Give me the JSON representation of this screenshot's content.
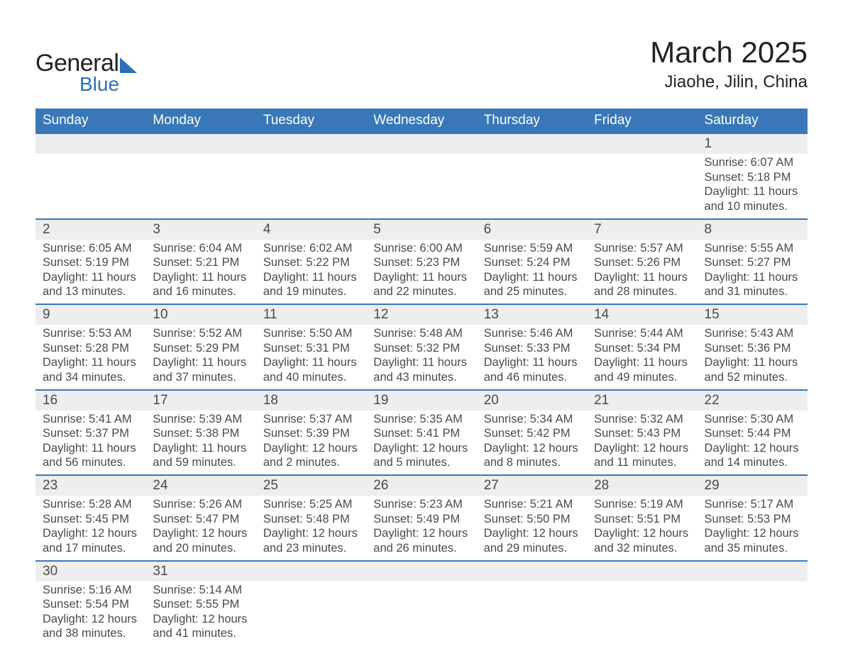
{
  "logo": {
    "text1": "General",
    "text2": "Blue",
    "triangle_color": "#2f6fb3"
  },
  "title": "March 2025",
  "location": "Jiaohe, Jilin, China",
  "colors": {
    "header_bg": "#3a77b8",
    "header_text": "#ffffff",
    "daynum_bg": "#eeeeee",
    "row_border": "#3a77b8",
    "body_text": "#4a4a4a",
    "page_bg": "#ffffff"
  },
  "typography": {
    "title_fontsize": 42,
    "location_fontsize": 24,
    "header_fontsize": 19,
    "daynum_fontsize": 19,
    "detail_fontsize": 16.5,
    "font_family": "Arial"
  },
  "weekdays": [
    "Sunday",
    "Monday",
    "Tuesday",
    "Wednesday",
    "Thursday",
    "Friday",
    "Saturday"
  ],
  "weeks": [
    [
      null,
      null,
      null,
      null,
      null,
      null,
      {
        "n": "1",
        "sr": "Sunrise: 6:07 AM",
        "ss": "Sunset: 5:18 PM",
        "d1": "Daylight: 11 hours",
        "d2": "and 10 minutes."
      }
    ],
    [
      {
        "n": "2",
        "sr": "Sunrise: 6:05 AM",
        "ss": "Sunset: 5:19 PM",
        "d1": "Daylight: 11 hours",
        "d2": "and 13 minutes."
      },
      {
        "n": "3",
        "sr": "Sunrise: 6:04 AM",
        "ss": "Sunset: 5:21 PM",
        "d1": "Daylight: 11 hours",
        "d2": "and 16 minutes."
      },
      {
        "n": "4",
        "sr": "Sunrise: 6:02 AM",
        "ss": "Sunset: 5:22 PM",
        "d1": "Daylight: 11 hours",
        "d2": "and 19 minutes."
      },
      {
        "n": "5",
        "sr": "Sunrise: 6:00 AM",
        "ss": "Sunset: 5:23 PM",
        "d1": "Daylight: 11 hours",
        "d2": "and 22 minutes."
      },
      {
        "n": "6",
        "sr": "Sunrise: 5:59 AM",
        "ss": "Sunset: 5:24 PM",
        "d1": "Daylight: 11 hours",
        "d2": "and 25 minutes."
      },
      {
        "n": "7",
        "sr": "Sunrise: 5:57 AM",
        "ss": "Sunset: 5:26 PM",
        "d1": "Daylight: 11 hours",
        "d2": "and 28 minutes."
      },
      {
        "n": "8",
        "sr": "Sunrise: 5:55 AM",
        "ss": "Sunset: 5:27 PM",
        "d1": "Daylight: 11 hours",
        "d2": "and 31 minutes."
      }
    ],
    [
      {
        "n": "9",
        "sr": "Sunrise: 5:53 AM",
        "ss": "Sunset: 5:28 PM",
        "d1": "Daylight: 11 hours",
        "d2": "and 34 minutes."
      },
      {
        "n": "10",
        "sr": "Sunrise: 5:52 AM",
        "ss": "Sunset: 5:29 PM",
        "d1": "Daylight: 11 hours",
        "d2": "and 37 minutes."
      },
      {
        "n": "11",
        "sr": "Sunrise: 5:50 AM",
        "ss": "Sunset: 5:31 PM",
        "d1": "Daylight: 11 hours",
        "d2": "and 40 minutes."
      },
      {
        "n": "12",
        "sr": "Sunrise: 5:48 AM",
        "ss": "Sunset: 5:32 PM",
        "d1": "Daylight: 11 hours",
        "d2": "and 43 minutes."
      },
      {
        "n": "13",
        "sr": "Sunrise: 5:46 AM",
        "ss": "Sunset: 5:33 PM",
        "d1": "Daylight: 11 hours",
        "d2": "and 46 minutes."
      },
      {
        "n": "14",
        "sr": "Sunrise: 5:44 AM",
        "ss": "Sunset: 5:34 PM",
        "d1": "Daylight: 11 hours",
        "d2": "and 49 minutes."
      },
      {
        "n": "15",
        "sr": "Sunrise: 5:43 AM",
        "ss": "Sunset: 5:36 PM",
        "d1": "Daylight: 11 hours",
        "d2": "and 52 minutes."
      }
    ],
    [
      {
        "n": "16",
        "sr": "Sunrise: 5:41 AM",
        "ss": "Sunset: 5:37 PM",
        "d1": "Daylight: 11 hours",
        "d2": "and 56 minutes."
      },
      {
        "n": "17",
        "sr": "Sunrise: 5:39 AM",
        "ss": "Sunset: 5:38 PM",
        "d1": "Daylight: 11 hours",
        "d2": "and 59 minutes."
      },
      {
        "n": "18",
        "sr": "Sunrise: 5:37 AM",
        "ss": "Sunset: 5:39 PM",
        "d1": "Daylight: 12 hours",
        "d2": "and 2 minutes."
      },
      {
        "n": "19",
        "sr": "Sunrise: 5:35 AM",
        "ss": "Sunset: 5:41 PM",
        "d1": "Daylight: 12 hours",
        "d2": "and 5 minutes."
      },
      {
        "n": "20",
        "sr": "Sunrise: 5:34 AM",
        "ss": "Sunset: 5:42 PM",
        "d1": "Daylight: 12 hours",
        "d2": "and 8 minutes."
      },
      {
        "n": "21",
        "sr": "Sunrise: 5:32 AM",
        "ss": "Sunset: 5:43 PM",
        "d1": "Daylight: 12 hours",
        "d2": "and 11 minutes."
      },
      {
        "n": "22",
        "sr": "Sunrise: 5:30 AM",
        "ss": "Sunset: 5:44 PM",
        "d1": "Daylight: 12 hours",
        "d2": "and 14 minutes."
      }
    ],
    [
      {
        "n": "23",
        "sr": "Sunrise: 5:28 AM",
        "ss": "Sunset: 5:45 PM",
        "d1": "Daylight: 12 hours",
        "d2": "and 17 minutes."
      },
      {
        "n": "24",
        "sr": "Sunrise: 5:26 AM",
        "ss": "Sunset: 5:47 PM",
        "d1": "Daylight: 12 hours",
        "d2": "and 20 minutes."
      },
      {
        "n": "25",
        "sr": "Sunrise: 5:25 AM",
        "ss": "Sunset: 5:48 PM",
        "d1": "Daylight: 12 hours",
        "d2": "and 23 minutes."
      },
      {
        "n": "26",
        "sr": "Sunrise: 5:23 AM",
        "ss": "Sunset: 5:49 PM",
        "d1": "Daylight: 12 hours",
        "d2": "and 26 minutes."
      },
      {
        "n": "27",
        "sr": "Sunrise: 5:21 AM",
        "ss": "Sunset: 5:50 PM",
        "d1": "Daylight: 12 hours",
        "d2": "and 29 minutes."
      },
      {
        "n": "28",
        "sr": "Sunrise: 5:19 AM",
        "ss": "Sunset: 5:51 PM",
        "d1": "Daylight: 12 hours",
        "d2": "and 32 minutes."
      },
      {
        "n": "29",
        "sr": "Sunrise: 5:17 AM",
        "ss": "Sunset: 5:53 PM",
        "d1": "Daylight: 12 hours",
        "d2": "and 35 minutes."
      }
    ],
    [
      {
        "n": "30",
        "sr": "Sunrise: 5:16 AM",
        "ss": "Sunset: 5:54 PM",
        "d1": "Daylight: 12 hours",
        "d2": "and 38 minutes."
      },
      {
        "n": "31",
        "sr": "Sunrise: 5:14 AM",
        "ss": "Sunset: 5:55 PM",
        "d1": "Daylight: 12 hours",
        "d2": "and 41 minutes."
      },
      null,
      null,
      null,
      null,
      null
    ]
  ]
}
